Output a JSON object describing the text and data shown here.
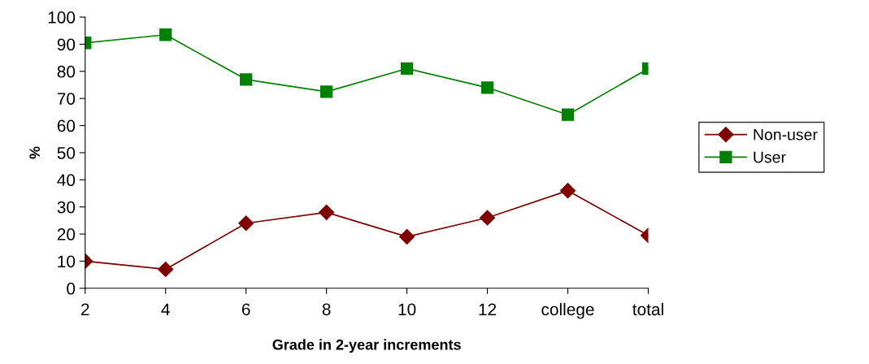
{
  "chart_data": {
    "type": "line",
    "xlabel": "Grade in 2-year increments",
    "ylabel": "%",
    "categories": [
      "2",
      "4",
      "6",
      "8",
      "10",
      "12",
      "college",
      "total"
    ],
    "series": [
      {
        "name": "Non-user",
        "color": "#800000",
        "marker": "diamond",
        "values": [
          10,
          7,
          24,
          28,
          19,
          26,
          36,
          19.5
        ]
      },
      {
        "name": "User",
        "color": "#008000",
        "marker": "square",
        "values": [
          90.5,
          93.5,
          77,
          72.5,
          81,
          74,
          64,
          81
        ]
      }
    ],
    "ylim": [
      0,
      100
    ],
    "yticks": [
      0,
      10,
      20,
      30,
      40,
      50,
      60,
      70,
      80,
      90,
      100
    ],
    "grid": false,
    "legend": "right",
    "line_style": "solid"
  }
}
